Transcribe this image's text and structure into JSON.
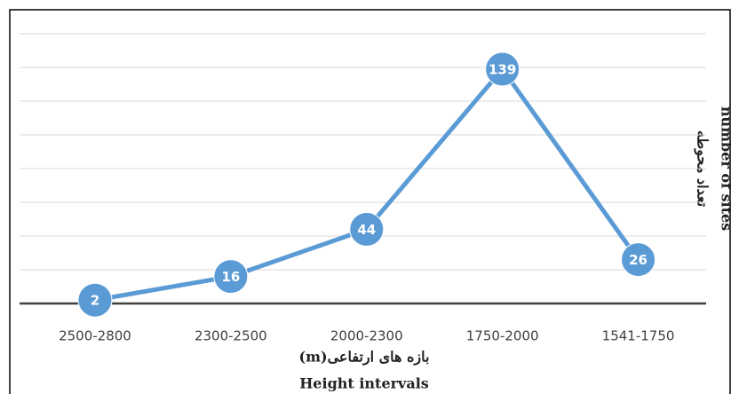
{
  "chart_data": {
    "type": "line",
    "categories": [
      "2500-2800",
      "2300-2500",
      "2000-2300",
      "1750-2000",
      "1541-1750"
    ],
    "values": [
      2,
      16,
      44,
      139,
      26
    ],
    "color": "#5b9bd5",
    "ylim": [
      0,
      160
    ],
    "yticks": [
      0,
      20,
      40,
      60,
      80,
      100,
      120,
      140,
      160
    ],
    "grid": true,
    "x_label": "بازه های ارتفاعی(m)",
    "x_label_en": "Height intervals",
    "y_label": "تعداد محوطه",
    "y_label_en": "number of sites"
  }
}
